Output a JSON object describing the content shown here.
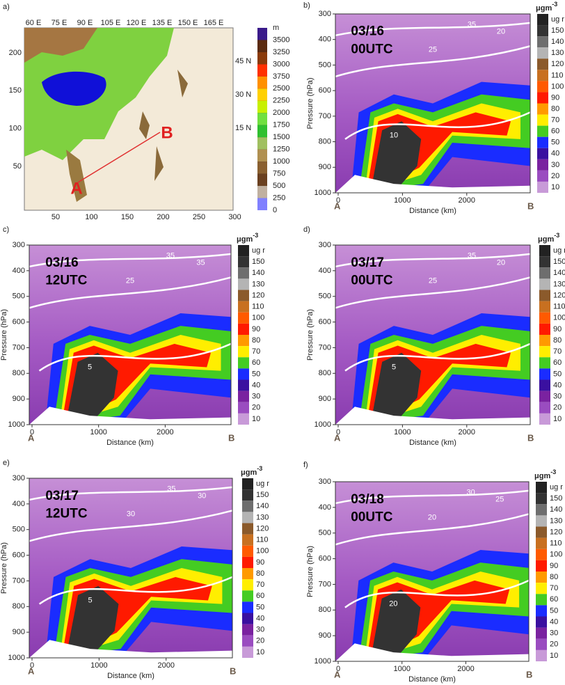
{
  "panel_a": {
    "label": "a)",
    "lon_labels": [
      "60 E",
      "75 E",
      "90 E",
      "105 E",
      "120 E",
      "135 E",
      "150 E",
      "165 E"
    ],
    "lat_labels": [
      "45 N",
      "30 N",
      "15 N"
    ],
    "y_ticks": [
      200,
      150,
      100,
      50
    ],
    "x_ticks": [
      50,
      100,
      150,
      200,
      250,
      300
    ],
    "colorbar_unit": "m",
    "colorbar_labels": [
      3500,
      3250,
      3000,
      3750,
      2500,
      2250,
      2000,
      1750,
      1500,
      1250,
      1000,
      750,
      500,
      250,
      0
    ],
    "point_a": "A",
    "point_b": "B"
  },
  "axes": {
    "pressure_ticks": [
      300,
      400,
      500,
      600,
      700,
      800,
      900,
      1000
    ],
    "distance_ticks": [
      0,
      1000,
      2000
    ],
    "x_label": "Distance (km)",
    "y_label": "Pressure (hPa)",
    "start": "A",
    "end": "B"
  },
  "colorbar": {
    "unit": "μgm",
    "exponent": "-3",
    "labels": [
      "ug r",
      150,
      140,
      130,
      120,
      110,
      100,
      90,
      80,
      70,
      60,
      50,
      40,
      30,
      20,
      10
    ]
  },
  "cross_sections": [
    {
      "label": "b)",
      "date": "03/16",
      "time": "00UTC",
      "contour_labels": [
        "35",
        "25",
        "20",
        "10"
      ]
    },
    {
      "label": "c)",
      "date": "03/16",
      "time": "12UTC",
      "contour_labels": [
        "35",
        "25",
        "35",
        "5"
      ]
    },
    {
      "label": "d)",
      "date": "03/17",
      "time": "00UTC",
      "contour_labels": [
        "35",
        "25",
        "20",
        "5"
      ]
    },
    {
      "label": "e)",
      "date": "03/17",
      "time": "12UTC",
      "contour_labels": [
        "35",
        "30",
        "30",
        "5"
      ]
    },
    {
      "label": "f)",
      "date": "03/18",
      "time": "00UTC",
      "contour_labels": [
        "30",
        "20",
        "25",
        "20"
      ]
    }
  ]
}
